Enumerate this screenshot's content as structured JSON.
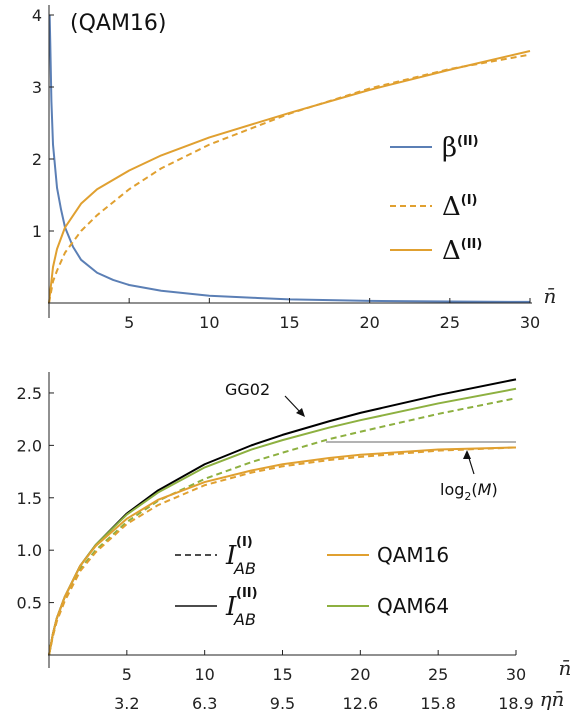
{
  "colors": {
    "blue": "#5b7fb5",
    "orange": "#e0a030",
    "green": "#8db040",
    "black": "#000000",
    "gray": "#9a9a9a",
    "axis": "#222222"
  },
  "chart_data": [
    {
      "type": "line",
      "title": "",
      "annotation": "(QAM16)",
      "xlabel": "n̄",
      "ylabel": "",
      "xlim": [
        0,
        30
      ],
      "ylim": [
        0,
        4
      ],
      "x_ticks": [
        5,
        10,
        15,
        20,
        25,
        30
      ],
      "x_tick_labels": [
        "5",
        "10",
        "15",
        "20",
        "25",
        "30"
      ],
      "y_ticks": [
        1,
        2,
        3,
        4
      ],
      "y_tick_labels": [
        "1",
        "2",
        "3",
        "4"
      ],
      "legend_position": "right",
      "series": [
        {
          "name": "β(II)",
          "label_main": "β",
          "label_sup": "(II)",
          "style": "solid",
          "color_key": "blue",
          "x": [
            0.04,
            0.08,
            0.15,
            0.25,
            0.5,
            0.75,
            1,
            1.5,
            2,
            3,
            4,
            5,
            7,
            10,
            13,
            15,
            20,
            25,
            30
          ],
          "y": [
            4.0,
            3.6,
            2.8,
            2.2,
            1.6,
            1.3,
            1.05,
            0.78,
            0.6,
            0.42,
            0.32,
            0.25,
            0.17,
            0.1,
            0.07,
            0.05,
            0.03,
            0.02,
            0.015
          ]
        },
        {
          "name": "Δ(I)",
          "label_main": "Δ",
          "label_sup": "(I)",
          "style": "dashed",
          "color_key": "orange",
          "x": [
            0,
            0.25,
            0.5,
            1,
            2,
            3,
            5,
            7,
            10,
            15,
            20,
            25,
            30
          ],
          "y": [
            0,
            0.3,
            0.45,
            0.7,
            1.0,
            1.22,
            1.58,
            1.87,
            2.2,
            2.63,
            2.98,
            3.25,
            3.45
          ]
        },
        {
          "name": "Δ(II)",
          "label_main": "Δ",
          "label_sup": "(II)",
          "style": "solid",
          "color_key": "orange",
          "x": [
            0,
            0.25,
            0.5,
            1,
            2,
            3,
            5,
            7,
            10,
            15,
            20,
            25,
            30
          ],
          "y": [
            0,
            0.5,
            0.75,
            1.05,
            1.38,
            1.58,
            1.84,
            2.05,
            2.3,
            2.64,
            2.96,
            3.24,
            3.5
          ]
        }
      ]
    },
    {
      "type": "line",
      "title": "",
      "xlabel": "n̄",
      "xlabel2": "ηn̄",
      "ylabel": "",
      "xlim": [
        0,
        30
      ],
      "ylim": [
        0,
        2.7
      ],
      "x_ticks": [
        5,
        10,
        15,
        20,
        25,
        30
      ],
      "x_tick_labels": [
        "5",
        "10",
        "15",
        "20",
        "25",
        "30"
      ],
      "x_tick_labels2": [
        "3.2",
        "6.3",
        "9.5",
        "12.6",
        "15.8",
        "18.9"
      ],
      "y_ticks": [
        0.5,
        1.0,
        1.5,
        2.0,
        2.5
      ],
      "y_tick_labels": [
        "0.5",
        "1.0",
        "1.5",
        "2.0",
        "2.5"
      ],
      "legend_position": "bottom-center",
      "annotations": {
        "gg02": "GG02",
        "log_prefix": "log",
        "log_sub": "2",
        "log_open": "(",
        "log_var": "M",
        "log_close": ")"
      },
      "log2M_reference": {
        "y": 2.0,
        "x_from": 18,
        "x_to": 30
      },
      "legend": {
        "dashed_main": "I",
        "dashed_sub": "AB",
        "dashed_sup": "(I)",
        "solid_main": "I",
        "solid_sub": "AB",
        "solid_sup": "(II)",
        "qam16": "QAM16",
        "qam64": "QAM64"
      },
      "series": [
        {
          "name": "GG02",
          "style": "solid",
          "color_key": "black",
          "x": [
            0,
            0.25,
            0.5,
            1,
            2,
            3,
            5,
            7,
            10,
            13,
            15,
            18,
            20,
            25,
            30
          ],
          "y": [
            0,
            0.2,
            0.35,
            0.55,
            0.85,
            1.05,
            1.35,
            1.57,
            1.82,
            2.0,
            2.1,
            2.23,
            2.31,
            2.48,
            2.63
          ]
        },
        {
          "name": "QAM64 (II)",
          "style": "solid",
          "color_key": "green",
          "x": [
            0,
            0.25,
            0.5,
            1,
            2,
            3,
            5,
            7,
            10,
            13,
            15,
            18,
            20,
            25,
            30
          ],
          "y": [
            0,
            0.2,
            0.35,
            0.55,
            0.85,
            1.05,
            1.34,
            1.55,
            1.79,
            1.96,
            2.05,
            2.17,
            2.24,
            2.4,
            2.54
          ]
        },
        {
          "name": "QAM64 (I)",
          "style": "dashed",
          "color_key": "green",
          "x": [
            0,
            0.25,
            0.5,
            1,
            2,
            3,
            5,
            7,
            10,
            13,
            15,
            18,
            20,
            25,
            30
          ],
          "y": [
            0,
            0.18,
            0.33,
            0.52,
            0.82,
            1.0,
            1.27,
            1.47,
            1.68,
            1.84,
            1.93,
            2.06,
            2.13,
            2.3,
            2.45
          ]
        },
        {
          "name": "QAM16 (II)",
          "style": "solid",
          "color_key": "orange",
          "x": [
            0,
            0.25,
            0.5,
            1,
            2,
            3,
            5,
            7,
            10,
            13,
            15,
            18,
            20,
            25,
            30
          ],
          "y": [
            0,
            0.2,
            0.35,
            0.55,
            0.85,
            1.04,
            1.3,
            1.48,
            1.65,
            1.76,
            1.82,
            1.88,
            1.91,
            1.96,
            1.98
          ]
        },
        {
          "name": "QAM16 (I)",
          "style": "dashed",
          "color_key": "orange",
          "x": [
            0,
            0.25,
            0.5,
            1,
            2,
            3,
            5,
            7,
            10,
            13,
            15,
            18,
            20,
            25,
            30
          ],
          "y": [
            0,
            0.18,
            0.32,
            0.51,
            0.8,
            0.98,
            1.25,
            1.43,
            1.62,
            1.74,
            1.8,
            1.86,
            1.89,
            1.95,
            1.98
          ]
        }
      ]
    }
  ]
}
